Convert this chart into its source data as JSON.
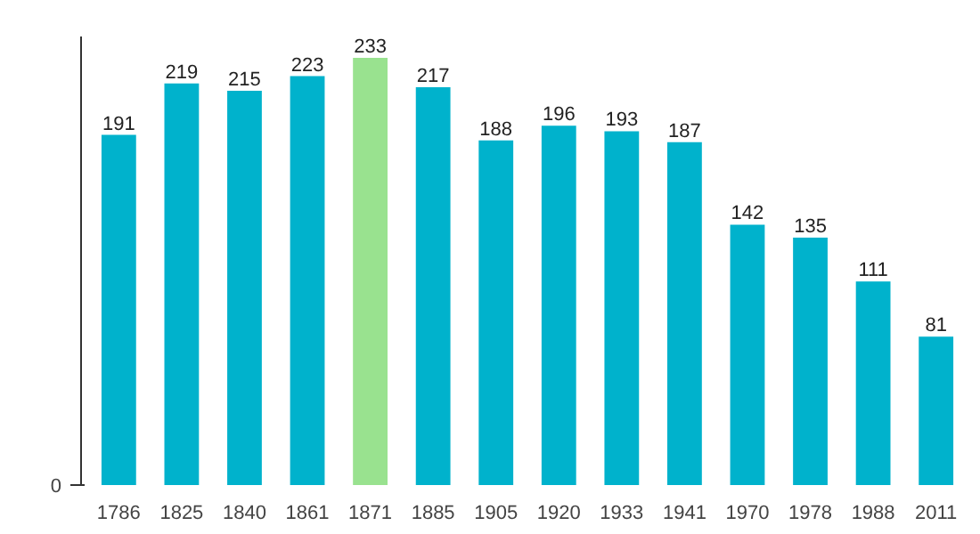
{
  "chart_data": {
    "type": "bar",
    "categories": [
      "1786",
      "1825",
      "1840",
      "1861",
      "1871",
      "1885",
      "1905",
      "1920",
      "1933",
      "1941",
      "1970",
      "1978",
      "1988",
      "2011"
    ],
    "values": [
      191,
      219,
      215,
      223,
      233,
      217,
      188,
      196,
      193,
      187,
      142,
      135,
      111,
      81
    ],
    "colors": [
      "#00b2cc",
      "#00b2cc",
      "#00b2cc",
      "#00b2cc",
      "#99e28f",
      "#00b2cc",
      "#00b2cc",
      "#00b2cc",
      "#00b2cc",
      "#00b2cc",
      "#00b2cc",
      "#00b2cc",
      "#00b2cc",
      "#00b2cc"
    ],
    "annotations": [
      "0"
    ],
    "data_labels": true
  }
}
